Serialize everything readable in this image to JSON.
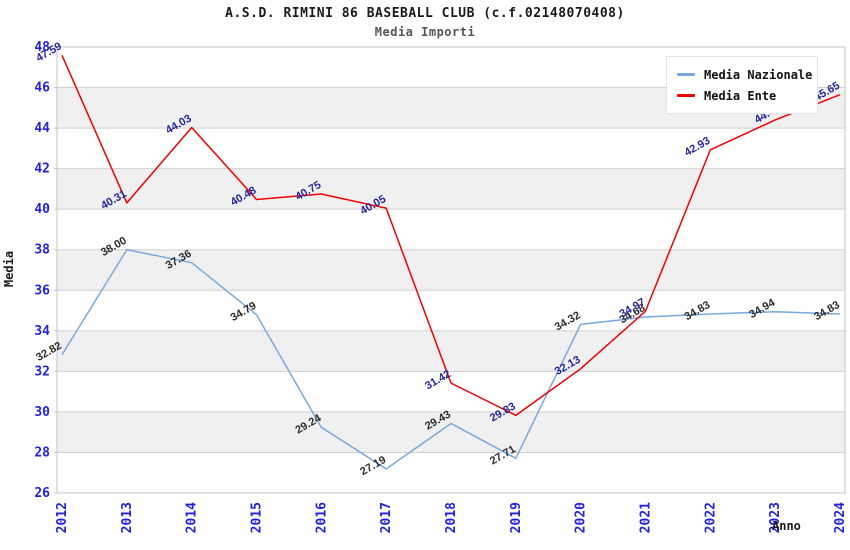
{
  "header": {
    "title": "A.S.D. RIMINI 86 BASEBALL CLUB (c.f.02148070408)",
    "subtitle": "Media Importi"
  },
  "axes": {
    "y_title": "Media",
    "x_title": "Anno"
  },
  "legend": {
    "items": [
      {
        "label": "Media Nazionale",
        "color": "#79a9dc"
      },
      {
        "label": "Media Ente",
        "color": "#f40000"
      }
    ]
  },
  "chart_data": {
    "type": "line",
    "title": "A.S.D. RIMINI 86 BASEBALL CLUB (c.f.02148070408)",
    "subtitle": "Media Importi",
    "xlabel": "Anno",
    "ylabel": "Media",
    "categories": [
      "2012",
      "2013",
      "2014",
      "2015",
      "2016",
      "2017",
      "2018",
      "2019",
      "2020",
      "2021",
      "2022",
      "2023",
      "2024"
    ],
    "y_ticks": [
      26,
      28,
      30,
      32,
      34,
      36,
      38,
      40,
      42,
      44,
      46,
      48
    ],
    "ylim": [
      26,
      48
    ],
    "grid": true,
    "band_rows": true,
    "legend_position": "top-right-inside",
    "series": [
      {
        "name": "Media Nazionale",
        "color": "#79a9dc",
        "label_color": "#2b2b2b",
        "values": [
          32.82,
          38.0,
          37.36,
          34.79,
          29.24,
          27.19,
          29.43,
          27.71,
          34.32,
          34.68,
          34.83,
          34.94,
          34.83
        ],
        "labels": [
          "32.82",
          "38.00",
          "37.36",
          "34.79",
          "29.24",
          "27.19",
          "29.43",
          "27.71",
          "34.32",
          "34.68",
          "34.83",
          "34.94",
          "34.83"
        ]
      },
      {
        "name": "Media Ente",
        "color": "#f40000",
        "label_color": "#24249b",
        "values": [
          47.59,
          40.31,
          44.03,
          40.48,
          40.75,
          40.05,
          31.42,
          29.83,
          32.13,
          34.97,
          42.93,
          44.4,
          45.65
        ],
        "labels": [
          "47.59",
          "40.31",
          "44.03",
          "40.48",
          "40.75",
          "40.05",
          "31.42",
          "29.83",
          "32.13",
          "34.97",
          "42.93",
          "44.4",
          "45.65"
        ]
      }
    ],
    "style": {
      "tick_label_color": "#2222dd",
      "band_color": "#f0f0f0",
      "grid_color": "#d0d0d0",
      "border_color": "#c4c4c4"
    }
  }
}
